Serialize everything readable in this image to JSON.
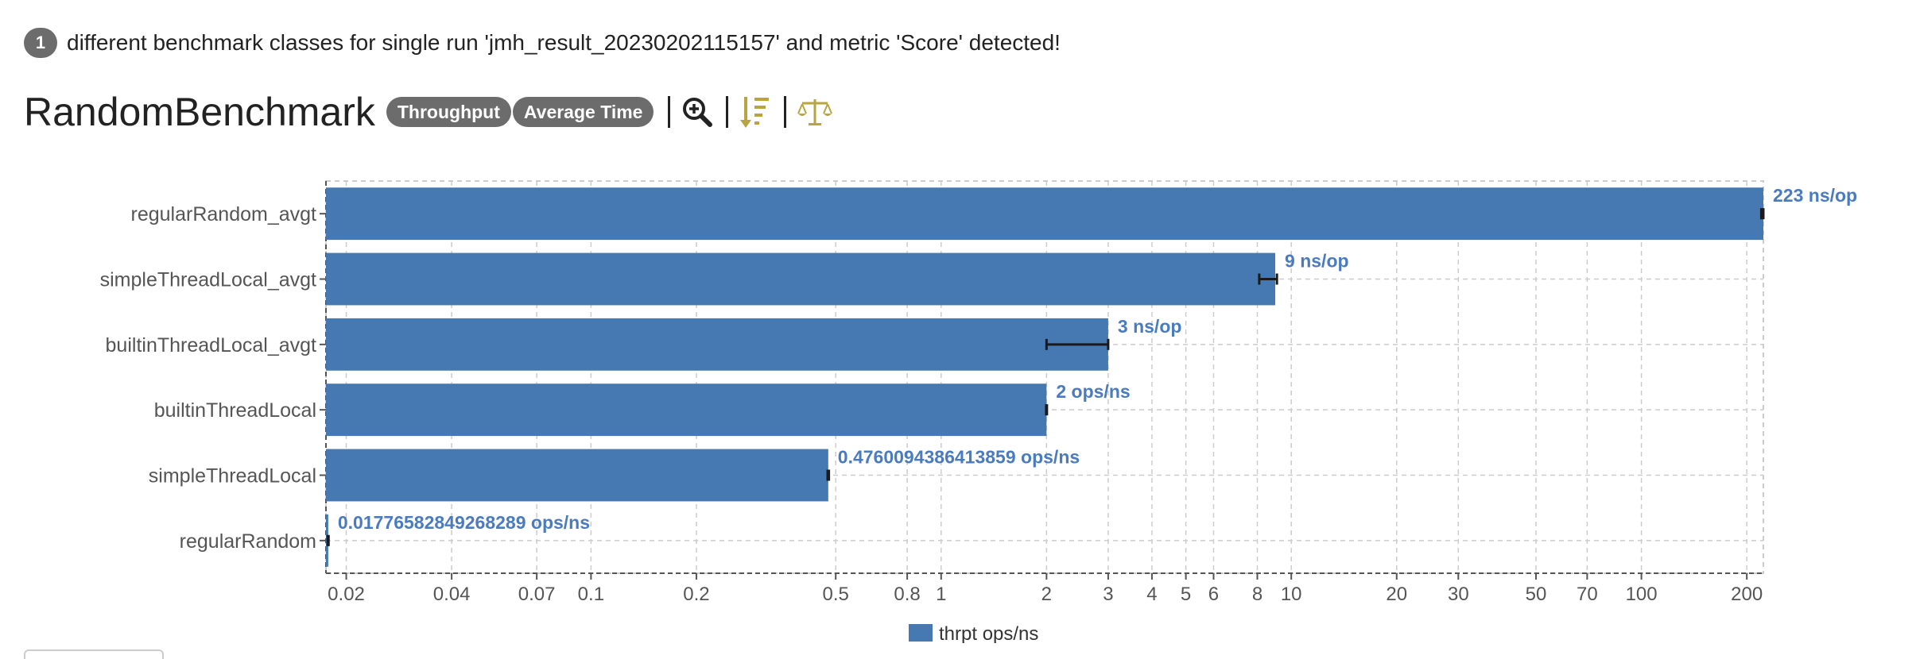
{
  "notice": {
    "count": "1",
    "text": "different benchmark classes for single run 'jmh_result_20230202115157' and metric 'Score' detected!"
  },
  "header": {
    "title": "RandomBenchmark",
    "badges": [
      "Throughput",
      "Average Time"
    ],
    "icons": [
      "zoom-in-icon",
      "sort-descending-icon",
      "balance-scale-icon"
    ]
  },
  "colors": {
    "bar": "#4678b2",
    "value_label": "#4a7bbf",
    "error_bar": "#1a1a1a",
    "grid": "#cccccc",
    "icon_gold": "#b8a440"
  },
  "chart_data": {
    "type": "bar",
    "orientation": "horizontal",
    "x_scale": "log",
    "xlim": [
      0.0175,
      223
    ],
    "categories": [
      "regularRandom_avgt",
      "simpleThreadLocal_avgt",
      "builtinThreadLocal_avgt",
      "builtinThreadLocal",
      "simpleThreadLocal",
      "regularRandom"
    ],
    "values": [
      223,
      9,
      3,
      2,
      0.4760094386413859,
      0.01776582849268289
    ],
    "errors": [
      [
        220,
        226
      ],
      [
        8.1,
        9.1
      ],
      [
        2.0,
        3.0
      ],
      [
        1.995,
        2.005
      ],
      [
        0.474,
        0.478
      ],
      [
        0.0177,
        0.0178
      ]
    ],
    "value_labels": [
      "223 ns/op",
      "9 ns/op",
      "3 ns/op",
      "2 ops/ns",
      "0.4760094386413859 ops/ns",
      "0.01776582849268289 ops/ns"
    ],
    "x_ticks": [
      0.02,
      0.04,
      0.07,
      0.1,
      0.2,
      0.5,
      0.8,
      1,
      2,
      3,
      4,
      5,
      6,
      8,
      10,
      20,
      30,
      50,
      70,
      100,
      200
    ],
    "x_tick_labels": [
      "0.02",
      "0.04",
      "0.07",
      "0.1",
      "0.2",
      "0.5",
      "0.8",
      "1",
      "2",
      "3",
      "4",
      "5",
      "6",
      "8",
      "10",
      "20",
      "30",
      "50",
      "70",
      "100",
      "200"
    ],
    "grid": true,
    "legend": {
      "position": "bottom-center",
      "entries": [
        "thrpt ops/ns"
      ]
    }
  }
}
